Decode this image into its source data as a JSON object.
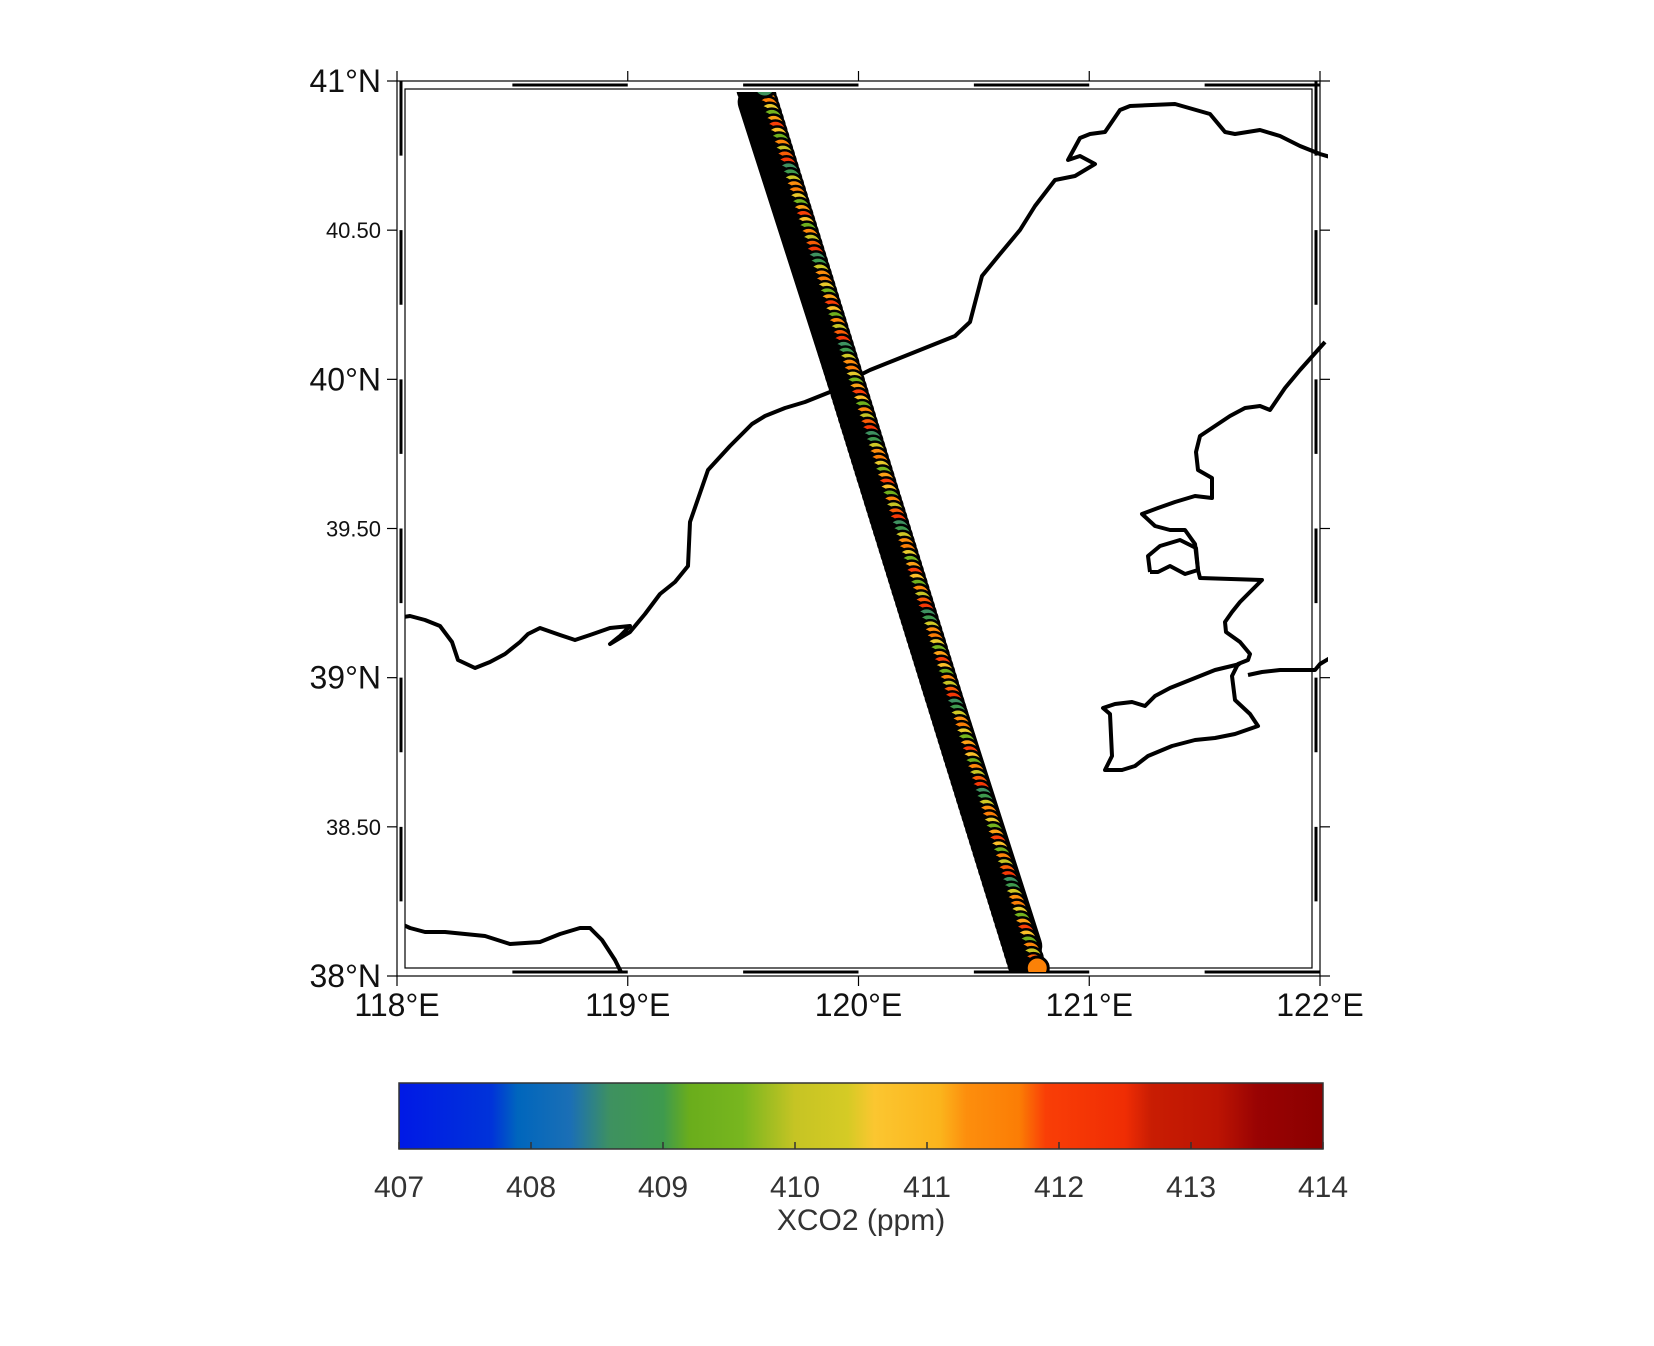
{
  "map": {
    "lon_range": [
      118,
      122
    ],
    "lat_range": [
      38,
      41
    ],
    "x_ticks": [
      {
        "value": 118,
        "label": "118°E"
      },
      {
        "value": 119,
        "label": "119°E"
      },
      {
        "value": 120,
        "label": "120°E"
      },
      {
        "value": 121,
        "label": "121°E"
      },
      {
        "value": 122,
        "label": "122°E"
      }
    ],
    "y_ticks": [
      {
        "value": 41,
        "label": "41°N",
        "size": "big"
      },
      {
        "value": 40.5,
        "label": "40.50",
        "size": "small"
      },
      {
        "value": 40,
        "label": "40°N",
        "size": "big"
      },
      {
        "value": 39.5,
        "label": "39.50",
        "size": "small"
      },
      {
        "value": 39,
        "label": "39°N",
        "size": "big"
      },
      {
        "value": 38.5,
        "label": "38.50",
        "size": "small"
      },
      {
        "value": 38,
        "label": "38°N",
        "size": "big"
      }
    ],
    "frame_style": "checkered",
    "coastline_color": "#000000"
  },
  "chart_data": {
    "type": "scatter",
    "description_series": "satellite footprint track",
    "track": {
      "start": {
        "lon": 119.55,
        "lat": 40.99
      },
      "end": {
        "lon": 120.74,
        "lat": 38.02
      },
      "n_points": 150
    },
    "color_field": "xco2",
    "xco2_samples": [
      408.6,
      409.0,
      410.2,
      411.3,
      411.7,
      410.5,
      409.5,
      411.2,
      411.9,
      410.8,
      409.3,
      411.5,
      410.0,
      411.8,
      412.1
    ]
  },
  "colorbar": {
    "min": 407,
    "max": 414,
    "ticks": [
      "407",
      "408",
      "409",
      "410",
      "411",
      "412",
      "413",
      "414"
    ],
    "label": "XCO2 (ppm)",
    "stops": [
      {
        "v": 407.0,
        "c": "#0019e6"
      },
      {
        "v": 407.7,
        "c": "#0033d9"
      },
      {
        "v": 407.9,
        "c": "#0066bd"
      },
      {
        "v": 408.3,
        "c": "#1b6fb5"
      },
      {
        "v": 408.6,
        "c": "#3e9160"
      },
      {
        "v": 409.0,
        "c": "#3e9a4e"
      },
      {
        "v": 409.2,
        "c": "#6aad1c"
      },
      {
        "v": 409.6,
        "c": "#78b61f"
      },
      {
        "v": 410.0,
        "c": "#c6c424"
      },
      {
        "v": 410.4,
        "c": "#d5cb25"
      },
      {
        "v": 410.6,
        "c": "#fbc630"
      },
      {
        "v": 411.1,
        "c": "#fbb41c"
      },
      {
        "v": 411.3,
        "c": "#fd8e0d"
      },
      {
        "v": 411.7,
        "c": "#fb7d05"
      },
      {
        "v": 411.9,
        "c": "#f93e06"
      },
      {
        "v": 412.5,
        "c": "#f02d04"
      },
      {
        "v": 412.7,
        "c": "#c91d03"
      },
      {
        "v": 413.2,
        "c": "#bc1403"
      },
      {
        "v": 413.5,
        "c": "#990303"
      },
      {
        "v": 414.0,
        "c": "#8b0000"
      }
    ]
  }
}
